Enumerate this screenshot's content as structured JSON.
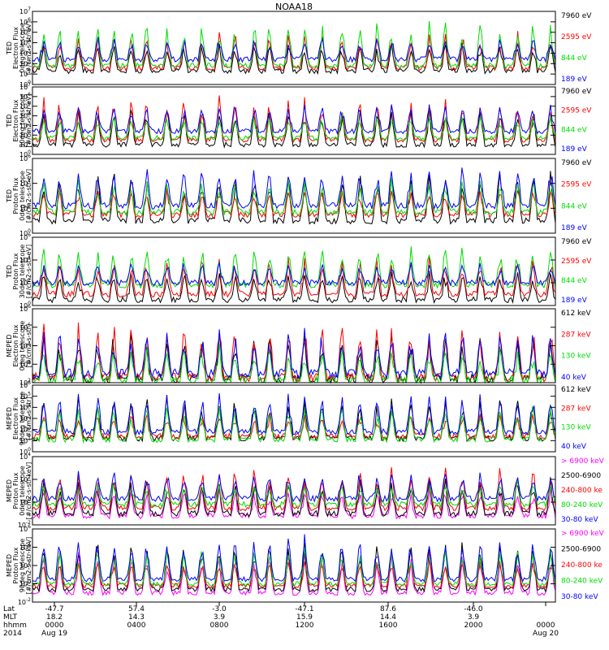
{
  "title": "NOAA18",
  "colors": {
    "black": "#000000",
    "red": "#ff0000",
    "green": "#00dd00",
    "blue": "#0000ff",
    "magenta": "#ff00ff"
  },
  "footer": {
    "row_labels": [
      "Lat",
      "MLT",
      "hhmm",
      "2014"
    ],
    "ticks": [
      {
        "lat": "-47.7",
        "mlt": "18.2",
        "hhmm": "0000",
        "date": "Aug 19"
      },
      {
        "lat": "57.4",
        "mlt": "14.3",
        "hhmm": "0400",
        "date": ""
      },
      {
        "lat": "-3.0",
        "mlt": "3.9",
        "hhmm": "0800",
        "date": ""
      },
      {
        "lat": "-47.1",
        "mlt": "15.9",
        "hhmm": "1200",
        "date": ""
      },
      {
        "lat": "87.6",
        "mlt": "14.4",
        "hhmm": "1600",
        "date": ""
      },
      {
        "lat": "-46.0",
        "mlt": "3.9",
        "hhmm": "2000",
        "date": ""
      },
      {
        "lat": "",
        "mlt": "",
        "hhmm": "0000",
        "date": "Aug 20"
      }
    ]
  },
  "chart_data": [
    {
      "type": "line",
      "title": "",
      "log_scale": true,
      "ylim": [
        1,
        10000000
      ],
      "ytick_exponents": [
        0,
        1,
        2,
        3,
        4,
        5,
        6,
        7
      ],
      "ylabel": [
        "TED",
        "Electron Flux",
        "0deg telescope",
        "[#/cm2-s-str-eV]"
      ],
      "series": [
        {
          "name": "7960 eV",
          "color": "black",
          "base": 1.3
        },
        {
          "name": "2595 eV",
          "color": "red",
          "base": 1.6
        },
        {
          "name": "844 eV",
          "color": "green",
          "base": 1.8
        },
        {
          "name": "189 eV",
          "color": "blue",
          "base": 2.4
        }
      ]
    },
    {
      "type": "line",
      "title": "",
      "log_scale": true,
      "ylim": [
        1,
        10000000
      ],
      "ytick_exponents": [
        0,
        1,
        2,
        3,
        4,
        5,
        6,
        7
      ],
      "ylabel": [
        "TED",
        "Electron Flux",
        "30deg telescope",
        "[#/cm2-s-str-eV]"
      ],
      "series": [
        {
          "name": "7960 eV",
          "color": "black",
          "base": 1.0
        },
        {
          "name": "2595 eV",
          "color": "red",
          "base": 1.5
        },
        {
          "name": "844 eV",
          "color": "green",
          "base": 1.7
        },
        {
          "name": "189 eV",
          "color": "blue",
          "base": 2.4
        }
      ]
    },
    {
      "type": "line",
      "title": "",
      "log_scale": true,
      "ylim": [
        1,
        1000000
      ],
      "ytick_exponents": [
        0,
        2,
        4,
        6
      ],
      "ylabel": [
        "TED",
        "Proton Flux",
        "0deg telescope",
        "[#/cm2-s-str-eV]"
      ],
      "series": [
        {
          "name": "7960 eV",
          "color": "black",
          "base": 1.0
        },
        {
          "name": "2595 eV",
          "color": "red",
          "base": 1.5
        },
        {
          "name": "844 eV",
          "color": "green",
          "base": 1.7
        },
        {
          "name": "189 eV",
          "color": "blue",
          "base": 2.2
        }
      ]
    },
    {
      "type": "line",
      "title": "",
      "log_scale": true,
      "ylim": [
        1,
        1000000
      ],
      "ytick_exponents": [
        0,
        2,
        4,
        6
      ],
      "ylabel": [
        "TED",
        "Proton Flux",
        "30deg telescope",
        "[#/cm2-s-str-eV]"
      ],
      "series": [
        {
          "name": "7960 eV",
          "color": "black",
          "base": 0.5
        },
        {
          "name": "2595 eV",
          "color": "red",
          "base": 1.0
        },
        {
          "name": "844 eV",
          "color": "green",
          "base": 1.8
        },
        {
          "name": "189 eV",
          "color": "blue",
          "base": 2.0
        }
      ]
    },
    {
      "type": "line",
      "title": "",
      "log_scale": true,
      "ylim": [
        100,
        1000000
      ],
      "ytick_exponents": [
        2,
        3,
        4,
        5,
        6
      ],
      "ylabel": [
        "MEPED",
        "Electron Flux",
        "0deg telescope",
        "[#/cm2-s-str]"
      ],
      "series": [
        {
          "name": "612 keV",
          "color": "black",
          "base": 2.2
        },
        {
          "name": "287 keV",
          "color": "red",
          "base": 2.3
        },
        {
          "name": "130 keV",
          "color": "green",
          "base": 2.1
        },
        {
          "name": "40 keV",
          "color": "blue",
          "base": 2.5
        }
      ]
    },
    {
      "type": "line",
      "title": "",
      "log_scale": true,
      "ylim": [
        1,
        1000000
      ],
      "ytick_exponents": [
        0,
        1,
        2,
        3,
        4,
        5,
        6
      ],
      "ylabel": [
        "MEPED",
        "Electron Flux",
        "90deg telescope",
        "[#/cm2-s-str]"
      ],
      "series": [
        {
          "name": "612 keV",
          "color": "black",
          "base": 1.2
        },
        {
          "name": "287 keV",
          "color": "red",
          "base": 1.4
        },
        {
          "name": "130 keV",
          "color": "green",
          "base": 1.1
        },
        {
          "name": "40 keV",
          "color": "blue",
          "base": 1.8
        }
      ]
    },
    {
      "type": "line",
      "title": "",
      "log_scale": true,
      "ylim": [
        0.01,
        10000
      ],
      "ytick_exponents": [
        -2,
        0,
        2,
        4
      ],
      "ylabel": [
        "MEPED",
        "Proton Flux",
        "0deg telescope",
        "[#/cm2-s-str-keV]"
      ],
      "series": [
        {
          "name": "> 6900 keV",
          "color": "magenta",
          "base": -1.2
        },
        {
          "name": "2500-6900",
          "color": "black",
          "base": -1.0
        },
        {
          "name": "240-800 ke",
          "color": "red",
          "base": -0.5
        },
        {
          "name": "80-240 keV",
          "color": "green",
          "base": -0.2
        },
        {
          "name": "30-80 keV",
          "color": "blue",
          "base": 0.3
        }
      ]
    },
    {
      "type": "line",
      "title": "",
      "log_scale": true,
      "ylim": [
        0.01,
        1000000
      ],
      "ytick_exponents": [
        -2,
        0,
        2,
        4,
        6
      ],
      "ylabel": [
        "MEPED",
        "Proton Flux",
        "90deg telescope",
        "[#/cm2-s-str-keV]"
      ],
      "series": [
        {
          "name": "> 6900 keV",
          "color": "magenta",
          "base": -1.0
        },
        {
          "name": "2500-6900",
          "color": "black",
          "base": -0.6
        },
        {
          "name": "240-800 ke",
          "color": "red",
          "base": -0.2
        },
        {
          "name": "80-240 keV",
          "color": "green",
          "base": 0.0
        },
        {
          "name": "30-80 keV",
          "color": "blue",
          "base": 0.5
        }
      ]
    }
  ]
}
